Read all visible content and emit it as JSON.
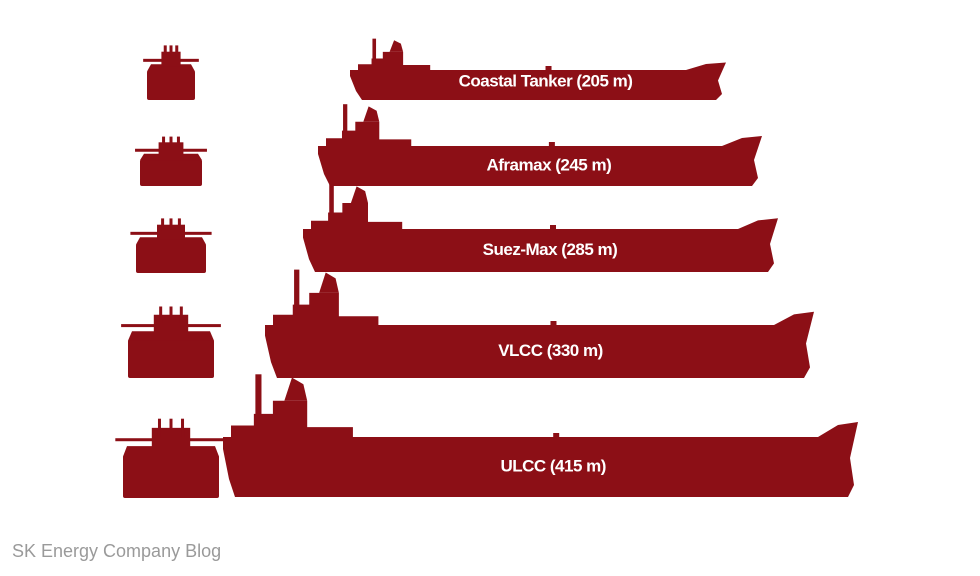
{
  "ships": [
    {
      "label": "Coastal Tanker (205 m)"
    },
    {
      "label": "Aframax (245 m)"
    },
    {
      "label": "Suez-Max (285 m)"
    },
    {
      "label": "VLCC (330 m)"
    },
    {
      "label": "ULCC (415 m)"
    }
  ],
  "footer": "SK Energy Company Blog"
}
